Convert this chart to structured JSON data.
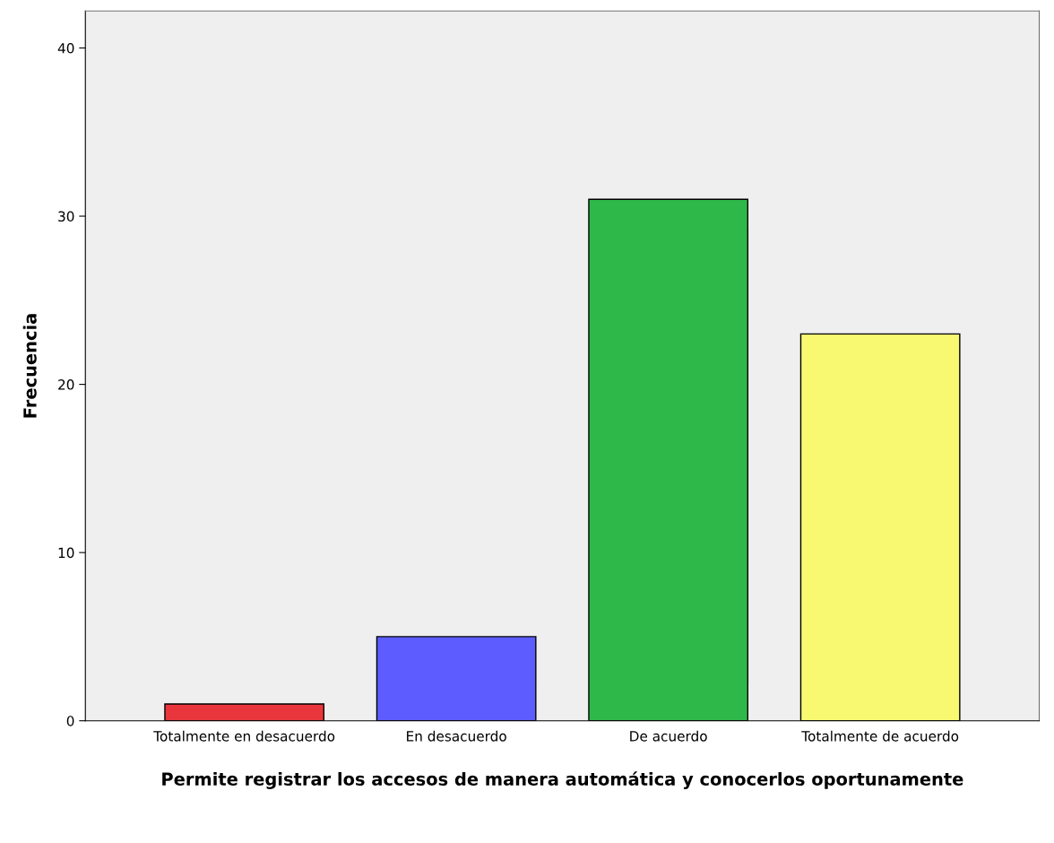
{
  "chart_data": {
    "type": "bar",
    "xlabel": "Permite registrar los accesos de manera automática y conocerlos oportunamente",
    "ylabel": "Frecuencia",
    "categories": [
      "Totalmente en desacuerdo",
      "En desacuerdo",
      "De acuerdo",
      "Totalmente de acuerdo"
    ],
    "values": [
      1,
      5,
      31,
      23
    ],
    "colors": [
      "#e8363c",
      "#5d5dff",
      "#2fb84a",
      "#f9f871"
    ],
    "ylim": [
      0,
      42.2
    ],
    "yticks": [
      0,
      10,
      20,
      30,
      40
    ],
    "grid": false
  }
}
